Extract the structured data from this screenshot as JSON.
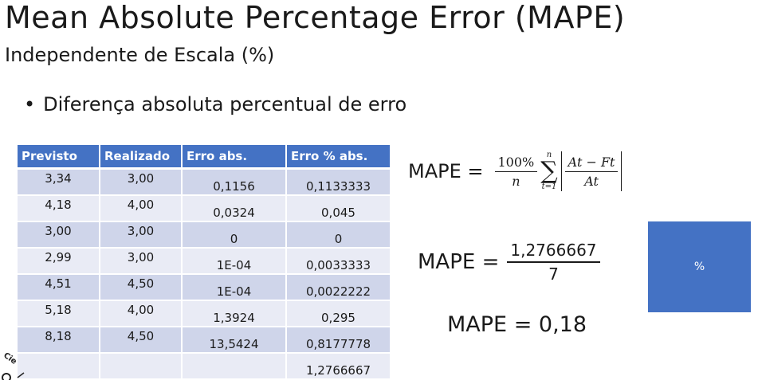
{
  "slide": {
    "title": "Mean Absolute Percentage Error (MAPE)",
    "subtitle": "Independente de Escala (%)",
    "bullet": "Diferença absoluta percentual de erro"
  },
  "table": {
    "headers": [
      "Previsto",
      "Realizado",
      "Erro abs.",
      "Erro % abs."
    ],
    "rows": [
      [
        "3,34",
        "3,00",
        "0,1156",
        "0,1133333"
      ],
      [
        "4,18",
        "4,00",
        "0,0324",
        "0,045"
      ],
      [
        "3,00",
        "3,00",
        "0",
        "0"
      ],
      [
        "2,99",
        "3,00",
        "1E-04",
        "0,0033333"
      ],
      [
        "4,51",
        "4,50",
        "1E-04",
        "0,0022222"
      ],
      [
        "5,18",
        "4,00",
        "1,3924",
        "0,295"
      ],
      [
        "8,18",
        "4,50",
        "13,5424",
        "0,8177778"
      ],
      [
        "",
        "",
        "",
        "1,2766667"
      ]
    ],
    "header_color": "#4472c4",
    "row_color_odd": "#cfd5ea",
    "row_color_even": "#e9ebf5"
  },
  "formula1": {
    "lhs": "MAPE =",
    "numerator": "100%",
    "denominator": "n",
    "sum_upper": "n",
    "sum_symbol": "∑",
    "sum_lower": "t=1",
    "abs_numerator": "At − Ft",
    "abs_denominator": "At"
  },
  "formula2": {
    "lhs": "MAPE =",
    "numerator": "1,2766667",
    "denominator": "7"
  },
  "formula3": {
    "text": "MAPE = 0,18"
  },
  "box": {
    "label": "%",
    "color": "#4472c4"
  },
  "stamp": {
    "text": "Cie"
  }
}
